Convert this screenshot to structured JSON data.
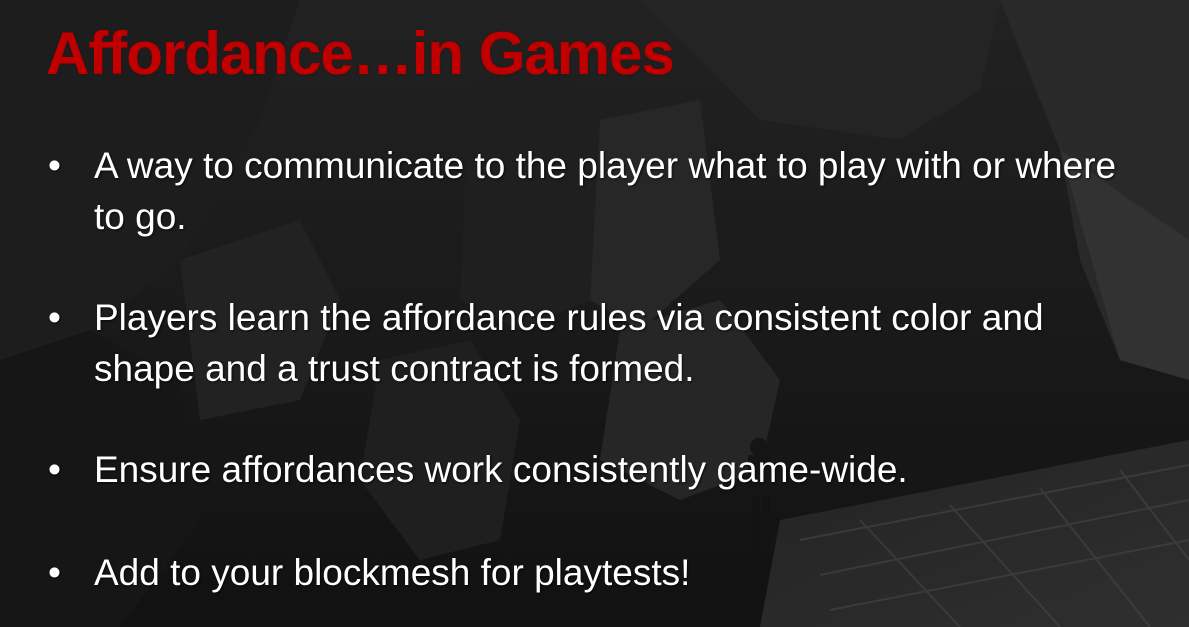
{
  "slide": {
    "title": "Affordance…in Games",
    "bullet_symbol": "•",
    "bullets": [
      "A way to communicate to the player what to play with or where to go.",
      "Players learn the affordance rules via consistent color and shape and a trust contract is formed.",
      "Ensure affordances work consistently game-wide.",
      "Add to your blockmesh for playtests!"
    ]
  },
  "colors": {
    "title": "#c00000",
    "body_text": "#ffffff",
    "background": "#1e1e1e"
  }
}
